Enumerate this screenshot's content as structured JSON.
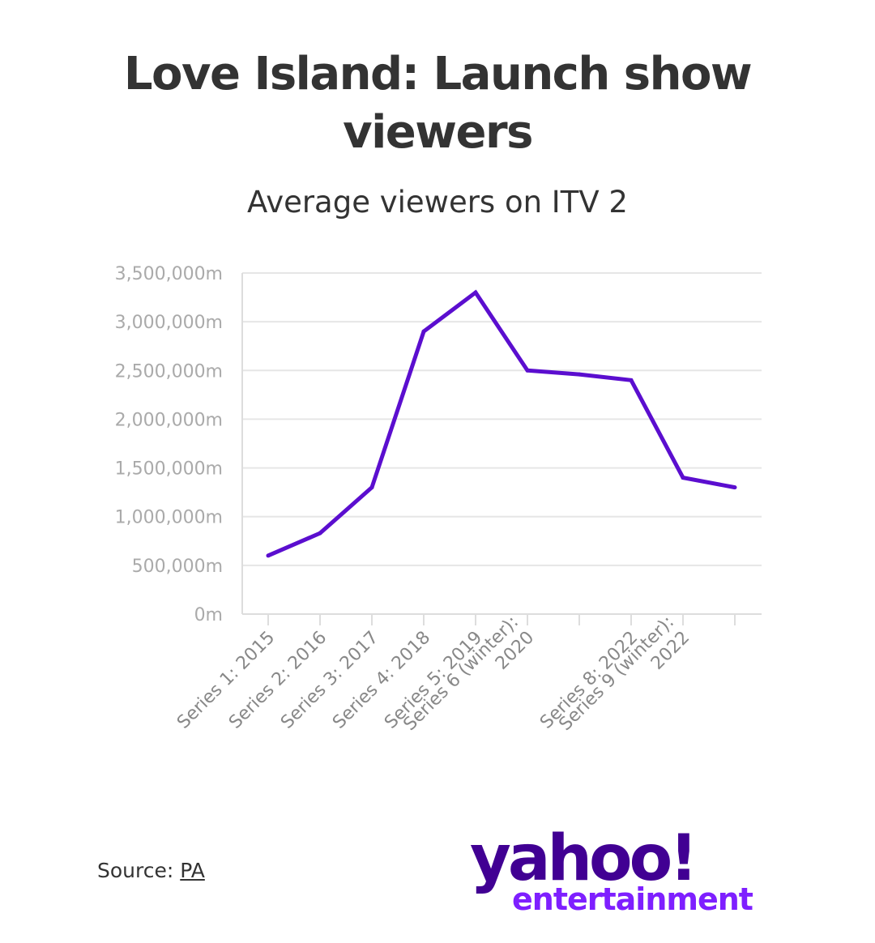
{
  "title_lines": [
    "Love Island: Launch show",
    "viewers"
  ],
  "subtitle": "Average viewers on ITV 2",
  "source": {
    "label": "Source:",
    "link_text": "PA"
  },
  "logo": {
    "word": "yahoo!",
    "sub": "entertainment"
  },
  "colors": {
    "line": "#5b0ecf",
    "grid": "#e6e6e6",
    "axis": "#dddddd",
    "title": "#333333",
    "logo_primary": "#410093",
    "logo_secondary": "#7e1fff"
  },
  "chart_data": {
    "type": "line",
    "title": "Love Island: Launch show viewers",
    "subtitle": "Average viewers on ITV 2",
    "ylim": [
      0,
      3500000
    ],
    "yticks": [
      0,
      500000,
      1000000,
      1500000,
      2000000,
      2500000,
      3000000,
      3500000
    ],
    "ytick_labels": [
      "0m",
      "500,000m",
      "1,000,000m",
      "1,500,000m",
      "2,000,000m",
      "2,500,000m",
      "3,000,000m",
      "3,500,000m"
    ],
    "grid": true,
    "categories": [
      "Series 1: 2015",
      "Series 2: 2016",
      "Series 3: 2017",
      "Series 4: 2018",
      "Series 5: 2019",
      "Series 6 (winter): 2020",
      "",
      "Series 8: 2022",
      "Series 9 (winter): 2022",
      ""
    ],
    "category_label_lines": [
      [
        "Series 1: 2015"
      ],
      [
        "Series 2: 2016"
      ],
      [
        "Series 3: 2017"
      ],
      [
        "Series 4: 2018"
      ],
      [
        "Series 5: 2019"
      ],
      [
        "Series 6 (winter):",
        "2020"
      ],
      [],
      [
        "Series 8: 2022"
      ],
      [
        "Series 9 (winter):",
        "2022"
      ],
      []
    ],
    "series": [
      {
        "values": [
          600000,
          830000,
          1300000,
          2900000,
          3300000,
          2500000,
          2460000,
          2400000,
          1400000,
          1300000
        ]
      }
    ]
  }
}
